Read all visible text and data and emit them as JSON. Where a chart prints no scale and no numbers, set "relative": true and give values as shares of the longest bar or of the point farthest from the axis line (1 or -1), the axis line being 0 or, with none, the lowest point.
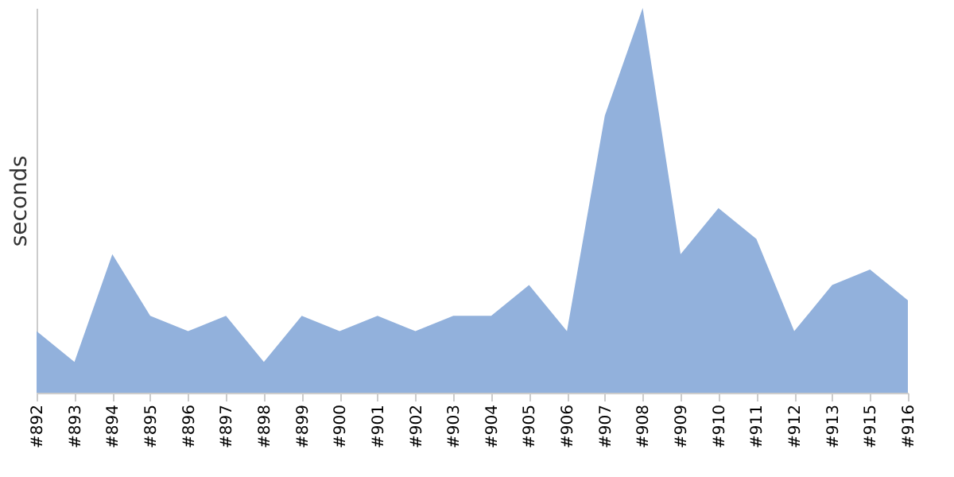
{
  "chart_data": {
    "type": "area",
    "ylabel": "seconds",
    "relative": true,
    "categories": [
      "#892",
      "#893",
      "#894",
      "#895",
      "#896",
      "#897",
      "#898",
      "#899",
      "#900",
      "#901",
      "#902",
      "#903",
      "#904",
      "#905",
      "#906",
      "#907",
      "#908",
      "#909",
      "#910",
      "#911",
      "#912",
      "#913",
      "#915",
      "#916"
    ],
    "series": [
      {
        "color": "#92b1dc",
        "values": [
          0.16,
          0.08,
          0.36,
          0.2,
          0.16,
          0.2,
          0.08,
          0.2,
          0.16,
          0.2,
          0.16,
          0.2,
          0.2,
          0.28,
          0.16,
          0.72,
          1,
          0.36,
          0.48,
          0.4,
          0.16,
          0.28,
          0.32,
          0.24
        ]
      }
    ],
    "grid": false
  }
}
